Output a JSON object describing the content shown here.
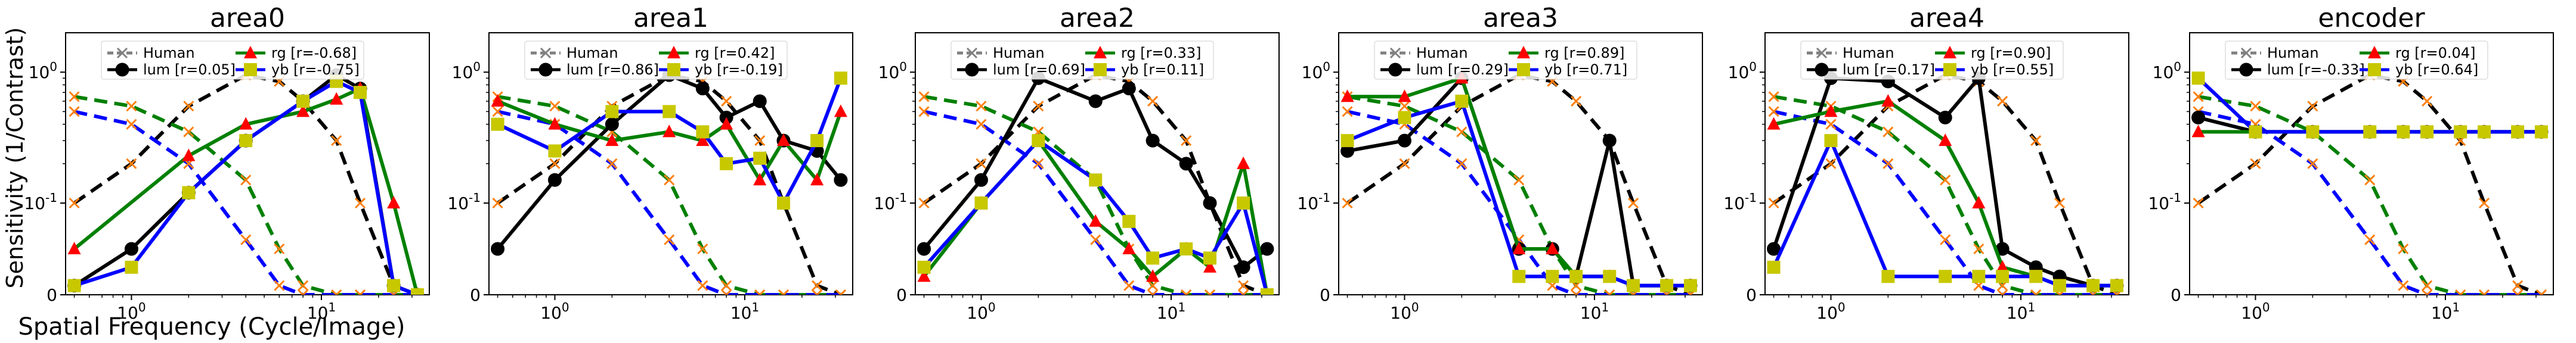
{
  "figure": {
    "ylabel": "Sensitivity (1/Contrast)",
    "xlabel": "Spatial Frequency (Cycle/Image)"
  },
  "colors": {
    "human": "#808080",
    "lum": "#000000",
    "rg": "#008000",
    "yb": "#0000ff",
    "marker_rg": "#ff0000",
    "marker_yb": "#c8c800",
    "human_marker": "#ff7f0e"
  },
  "chart_data": [
    {
      "type": "line",
      "title": "area0",
      "x_scale": "log",
      "y_scale": "symlog",
      "xlim": [
        0.45,
        37
      ],
      "ylim": [
        0,
        2
      ],
      "yticks": [
        "0",
        "10^-1",
        "10^0"
      ],
      "xticks": [
        "10^0",
        "10^1"
      ],
      "grid": false,
      "legend_placement": "top",
      "legend": [
        {
          "key": "human",
          "label": "Human"
        },
        {
          "key": "lum",
          "label": "lum [r=0.05]"
        },
        {
          "key": "rg",
          "label": "rg    [r=-0.68]"
        },
        {
          "key": "yb",
          "label": "yb    [r=-0.75]"
        }
      ],
      "series": [
        {
          "name": "lum",
          "x": [
            0.5,
            1,
            2,
            4,
            8,
            12,
            16,
            24,
            32
          ],
          "y": [
            0.01,
            0.05,
            0.12,
            0.3,
            0.6,
            0.95,
            0.75,
            0.01,
            0.0
          ]
        },
        {
          "name": "rg",
          "x": [
            0.5,
            2,
            4,
            8,
            12,
            16,
            24,
            32
          ],
          "y": [
            0.05,
            0.23,
            0.4,
            0.5,
            0.62,
            0.75,
            0.1,
            0.0
          ]
        },
        {
          "name": "yb",
          "x": [
            0.5,
            1,
            2,
            4,
            8,
            12,
            16,
            24,
            32
          ],
          "y": [
            0.01,
            0.03,
            0.12,
            0.3,
            0.6,
            0.85,
            0.7,
            0.01,
            0.0
          ]
        }
      ]
    },
    {
      "type": "line",
      "title": "area1",
      "x_scale": "log",
      "y_scale": "symlog",
      "xlim": [
        0.45,
        37
      ],
      "ylim": [
        0,
        2
      ],
      "yticks": [
        "0",
        "10^-1",
        "10^0"
      ],
      "xticks": [
        "10^0",
        "10^1"
      ],
      "grid": false,
      "legend_placement": "top",
      "legend": [
        {
          "key": "human",
          "label": "Human"
        },
        {
          "key": "lum",
          "label": "lum [r=0.86]"
        },
        {
          "key": "rg",
          "label": "rg    [r=0.42]"
        },
        {
          "key": "yb",
          "label": "yb    [r=-0.19]"
        }
      ],
      "series": [
        {
          "name": "lum",
          "x": [
            0.5,
            1,
            2,
            4,
            6,
            8,
            12,
            16,
            24,
            32
          ],
          "y": [
            0.05,
            0.15,
            0.4,
            0.95,
            0.75,
            0.45,
            0.6,
            0.3,
            0.25,
            0.15
          ]
        },
        {
          "name": "rg",
          "x": [
            0.5,
            1,
            2,
            4,
            6,
            8,
            12,
            16,
            24,
            32
          ],
          "y": [
            0.6,
            0.4,
            0.3,
            0.35,
            0.3,
            0.4,
            0.15,
            0.3,
            0.15,
            0.5
          ]
        },
        {
          "name": "yb",
          "x": [
            0.5,
            1,
            2,
            4,
            6,
            8,
            12,
            16,
            24,
            32
          ],
          "y": [
            0.4,
            0.25,
            0.5,
            0.5,
            0.35,
            0.2,
            0.22,
            0.1,
            0.3,
            0.9
          ]
        }
      ]
    },
    {
      "type": "line",
      "title": "area2",
      "x_scale": "log",
      "y_scale": "symlog",
      "xlim": [
        0.45,
        37
      ],
      "ylim": [
        0,
        2
      ],
      "yticks": [
        "0",
        "10^-1",
        "10^0"
      ],
      "xticks": [
        "10^0",
        "10^1"
      ],
      "grid": false,
      "legend_placement": "top",
      "legend": [
        {
          "key": "human",
          "label": "Human"
        },
        {
          "key": "lum",
          "label": "lum [r=0.69]"
        },
        {
          "key": "rg",
          "label": "rg    [r=0.33]"
        },
        {
          "key": "yb",
          "label": "yb    [r=0.11]"
        }
      ],
      "series": [
        {
          "name": "lum",
          "x": [
            0.5,
            1,
            2,
            4,
            6,
            8,
            12,
            16,
            24,
            32
          ],
          "y": [
            0.05,
            0.15,
            0.9,
            0.6,
            0.75,
            0.3,
            0.2,
            0.1,
            0.03,
            0.05
          ]
        },
        {
          "name": "rg",
          "x": [
            0.5,
            1,
            2,
            4,
            6,
            8,
            12,
            16,
            24,
            32
          ],
          "y": [
            0.02,
            0.1,
            0.3,
            0.08,
            0.05,
            0.02,
            0.05,
            0.03,
            0.2,
            0.0
          ]
        },
        {
          "name": "yb",
          "x": [
            0.5,
            1,
            2,
            4,
            6,
            8,
            12,
            16,
            24,
            32
          ],
          "y": [
            0.03,
            0.1,
            0.3,
            0.15,
            0.08,
            0.04,
            0.05,
            0.04,
            0.1,
            0.0
          ]
        }
      ]
    },
    {
      "type": "line",
      "title": "area3",
      "x_scale": "log",
      "y_scale": "symlog",
      "xlim": [
        0.45,
        37
      ],
      "ylim": [
        0,
        2
      ],
      "yticks": [
        "0",
        "10^-1",
        "10^0"
      ],
      "xticks": [
        "10^0",
        "10^1"
      ],
      "grid": false,
      "legend_placement": "top",
      "legend": [
        {
          "key": "human",
          "label": "Human"
        },
        {
          "key": "lum",
          "label": "lum [r=0.29]"
        },
        {
          "key": "rg",
          "label": "rg    [r=0.89]"
        },
        {
          "key": "yb",
          "label": "yb    [r=0.71]"
        }
      ],
      "series": [
        {
          "name": "lum",
          "x": [
            0.5,
            1,
            2,
            4,
            6,
            8,
            12,
            16,
            24,
            32
          ],
          "y": [
            0.25,
            0.3,
            0.9,
            0.05,
            0.05,
            0.02,
            0.3,
            0.01,
            0.01,
            0.01
          ]
        },
        {
          "name": "rg",
          "x": [
            0.5,
            1,
            2,
            4,
            6,
            8,
            12,
            16,
            24,
            32
          ],
          "y": [
            0.65,
            0.65,
            0.9,
            0.05,
            0.05,
            0.02,
            0.02,
            0.01,
            0.01,
            0.01
          ]
        },
        {
          "name": "yb",
          "x": [
            0.5,
            1,
            2,
            4,
            6,
            8,
            12,
            16,
            24,
            32
          ],
          "y": [
            0.3,
            0.45,
            0.6,
            0.02,
            0.02,
            0.02,
            0.02,
            0.01,
            0.01,
            0.01
          ]
        }
      ]
    },
    {
      "type": "line",
      "title": "area4",
      "x_scale": "log",
      "y_scale": "symlog",
      "xlim": [
        0.45,
        37
      ],
      "ylim": [
        0,
        2
      ],
      "yticks": [
        "0",
        "10^-1",
        "10^0"
      ],
      "xticks": [
        "10^0",
        "10^1"
      ],
      "grid": false,
      "legend_placement": "top",
      "legend": [
        {
          "key": "human",
          "label": "Human"
        },
        {
          "key": "lum",
          "label": "lum [r=0.17]"
        },
        {
          "key": "rg",
          "label": "rg    [r=0.90]"
        },
        {
          "key": "yb",
          "label": "yb    [r=0.55]"
        }
      ],
      "series": [
        {
          "name": "lum",
          "x": [
            0.5,
            1,
            2,
            4,
            6,
            8,
            12,
            16,
            24,
            32
          ],
          "y": [
            0.05,
            0.9,
            0.85,
            0.45,
            0.9,
            0.05,
            0.03,
            0.02,
            0.01,
            0.01
          ]
        },
        {
          "name": "rg",
          "x": [
            0.5,
            1,
            2,
            4,
            6,
            8,
            12,
            16,
            24,
            32
          ],
          "y": [
            0.4,
            0.5,
            0.6,
            0.3,
            0.1,
            0.03,
            0.02,
            0.01,
            0.01,
            0.01
          ]
        },
        {
          "name": "yb",
          "x": [
            0.5,
            1,
            2,
            4,
            6,
            8,
            12,
            16,
            24,
            32
          ],
          "y": [
            0.03,
            0.3,
            0.02,
            0.02,
            0.02,
            0.02,
            0.02,
            0.01,
            0.01,
            0.01
          ]
        }
      ]
    },
    {
      "type": "line",
      "title": "encoder",
      "x_scale": "log",
      "y_scale": "symlog",
      "xlim": [
        0.45,
        37
      ],
      "ylim": [
        0,
        2
      ],
      "yticks": [
        "0",
        "10^-1",
        "10^0"
      ],
      "xticks": [
        "10^0",
        "10^1"
      ],
      "grid": false,
      "legend_placement": "top",
      "legend": [
        {
          "key": "human",
          "label": "Human"
        },
        {
          "key": "lum",
          "label": "lum [r=-0.33]"
        },
        {
          "key": "rg",
          "label": "rg    [r=0.04]"
        },
        {
          "key": "yb",
          "label": "yb    [r=0.64]"
        }
      ],
      "series": [
        {
          "name": "lum",
          "x": [
            0.5,
            1,
            2,
            4,
            6,
            8,
            12,
            16,
            24,
            32
          ],
          "y": [
            0.45,
            0.35,
            0.35,
            0.35,
            0.35,
            0.35,
            0.35,
            0.35,
            0.35,
            0.35
          ]
        },
        {
          "name": "rg",
          "x": [
            0.5,
            1,
            2,
            4,
            6,
            8,
            12,
            16,
            24,
            32
          ],
          "y": [
            0.35,
            0.35,
            0.35,
            0.35,
            0.35,
            0.35,
            0.35,
            0.35,
            0.35,
            0.35
          ]
        },
        {
          "name": "yb",
          "x": [
            0.5,
            1,
            2,
            4,
            6,
            8,
            12,
            16,
            24,
            32
          ],
          "y": [
            0.9,
            0.35,
            0.35,
            0.35,
            0.35,
            0.35,
            0.35,
            0.35,
            0.35,
            0.35
          ]
        }
      ]
    }
  ],
  "reference_curves": {
    "x": [
      0.5,
      1,
      2,
      4,
      6,
      8,
      12,
      16,
      24,
      32
    ],
    "human_lum": [
      0.1,
      0.2,
      0.55,
      0.95,
      0.85,
      0.6,
      0.3,
      0.1,
      0.01,
      0.0
    ],
    "human_rg": [
      0.65,
      0.55,
      0.35,
      0.15,
      0.05,
      0.01,
      0.0,
      0.0,
      0.0,
      0.0
    ],
    "human_yb": [
      0.5,
      0.4,
      0.2,
      0.06,
      0.01,
      0.0,
      0.0,
      0.0,
      0.0,
      0.0
    ]
  }
}
